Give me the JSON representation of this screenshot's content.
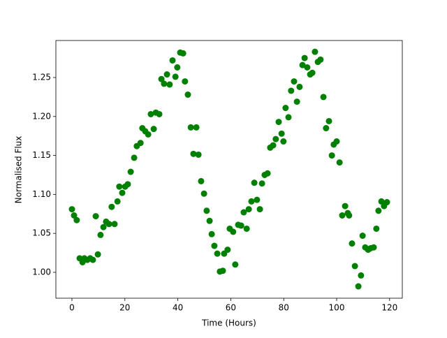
{
  "chart_data": {
    "type": "scatter",
    "xlabel": "Time (Hours)",
    "ylabel": "Normalised Flux",
    "color": "#008000",
    "xlim": [
      -6.07,
      124.8
    ],
    "ylim": [
      0.9668,
      1.2975
    ],
    "xticks": [
      0,
      20,
      40,
      60,
      80,
      100,
      120
    ],
    "yticks": [
      {
        "value": 1.0,
        "label": "1.00"
      },
      {
        "value": 1.05,
        "label": "1.05"
      },
      {
        "value": 1.1,
        "label": "1.10"
      },
      {
        "value": 1.15,
        "label": "1.15"
      },
      {
        "value": 1.2,
        "label": "1.20"
      },
      {
        "value": 1.25,
        "label": "1.25"
      }
    ],
    "x": [
      0,
      0.8,
      1.8,
      2.9,
      4.0,
      4.7,
      5.8,
      6.9,
      7.9,
      9.0,
      9.8,
      10.8,
      11.9,
      12.9,
      14.0,
      15.0,
      16.1,
      17.2,
      17.9,
      19.0,
      20.1,
      21.1,
      22.2,
      23.5,
      24.5,
      25.9,
      26.6,
      27.7,
      28.8,
      29.8,
      30.9,
      31.7,
      33.0,
      33.8,
      34.8,
      35.9,
      36.9,
      38.0,
      39.1,
      39.8,
      40.9,
      42.0,
      42.7,
      43.8,
      44.9,
      45.9,
      47.0,
      47.8,
      48.8,
      49.9,
      50.9,
      52.0,
      52.8,
      53.8,
      54.9,
      55.9,
      57.0,
      57.5,
      58.8,
      59.6,
      60.9,
      61.7,
      62.8,
      63.9,
      64.9,
      66.0,
      66.8,
      67.8,
      68.9,
      69.9,
      71.0,
      71.8,
      72.8,
      73.9,
      74.9,
      76.0,
      77.0,
      78.1,
      79.2,
      79.9,
      80.7,
      81.8,
      82.8,
      83.9,
      85.0,
      86.0,
      87.1,
      87.9,
      88.9,
      90.0,
      90.8,
      91.8,
      92.9,
      93.9,
      95.0,
      96.0,
      97.1,
      98.2,
      98.9,
      100.0,
      101.1,
      102.1,
      103.2,
      104.2,
      104.7,
      105.8,
      106.9,
      108.2,
      109.2,
      109.8,
      110.8,
      111.9,
      112.9,
      114.0,
      115.0,
      115.8,
      116.9,
      117.9,
      119.0
    ],
    "values": [
      1.081,
      1.073,
      1.067,
      1.018,
      1.013,
      1.018,
      1.016,
      1.018,
      1.016,
      1.072,
      1.023,
      1.048,
      1.058,
      1.065,
      1.062,
      1.084,
      1.062,
      1.091,
      1.11,
      1.102,
      1.11,
      1.113,
      1.129,
      1.147,
      1.162,
      1.166,
      1.185,
      1.181,
      1.177,
      1.203,
      1.184,
      1.205,
      1.203,
      1.248,
      1.242,
      1.254,
      1.241,
      1.272,
      1.251,
      1.263,
      1.282,
      1.281,
      1.245,
      1.228,
      1.186,
      1.152,
      1.186,
      1.151,
      1.117,
      1.101,
      1.079,
      1.066,
      1.049,
      1.034,
      1.024,
      1.001,
      1.002,
      1.024,
      1.029,
      1.056,
      1.052,
      1.01,
      1.061,
      1.06,
      1.077,
      1.056,
      1.081,
      1.091,
      1.115,
      1.093,
      1.081,
      1.114,
      1.125,
      1.127,
      1.16,
      1.163,
      1.171,
      1.193,
      1.178,
      1.168,
      1.211,
      1.199,
      1.233,
      1.245,
      1.219,
      1.238,
      1.266,
      1.275,
      1.263,
      1.254,
      1.256,
      1.283,
      1.27,
      1.273,
      1.225,
      1.185,
      1.194,
      1.15,
      1.164,
      1.168,
      1.141,
      1.073,
      1.085,
      1.076,
      1.073,
      1.037,
      1.008,
      0.982,
      0.996,
      1.047,
      1.032,
      1.029,
      1.031,
      1.032,
      1.056,
      1.079,
      1.091,
      1.085,
      1.09
    ]
  }
}
